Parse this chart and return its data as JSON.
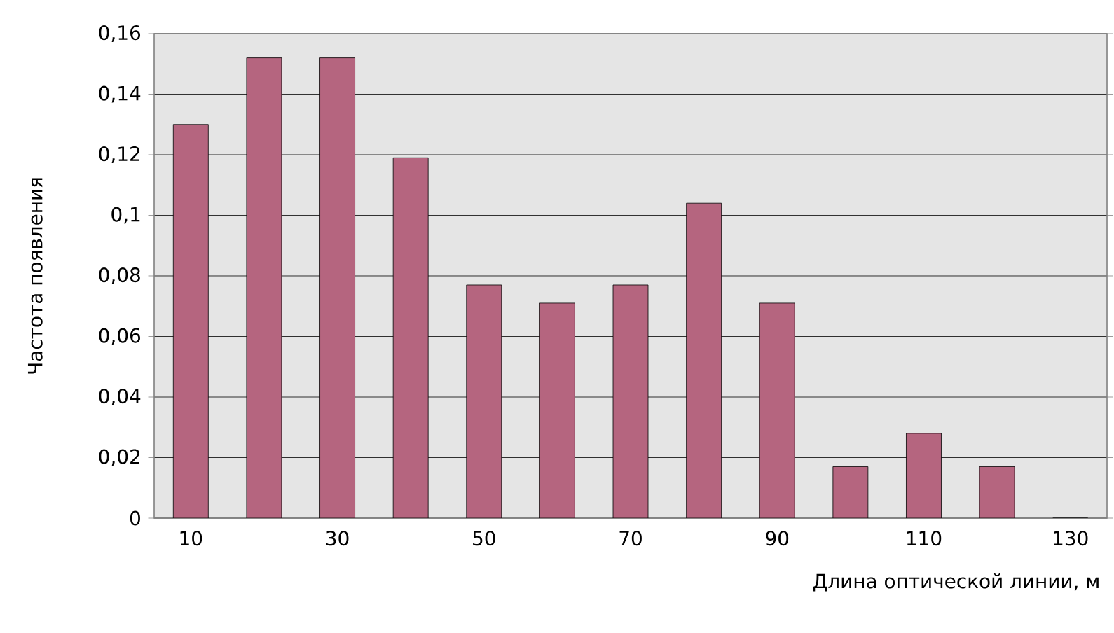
{
  "chart_data": {
    "type": "bar",
    "xlabel": "Длина оптической линии, м",
    "ylabel": "Частота появления",
    "categories": [
      "10",
      null,
      "30",
      null,
      "50",
      null,
      "70",
      null,
      "90",
      null,
      "110",
      null,
      "130"
    ],
    "values": [
      0.13,
      0.152,
      0.152,
      0.119,
      0.077,
      0.071,
      0.077,
      0.104,
      0.071,
      0.017,
      0.028,
      0.017,
      0
    ],
    "color": "#b5657f",
    "ylim": [
      0,
      0.16
    ],
    "yticks": [
      {
        "value": 0,
        "label": "0"
      },
      {
        "value": 0.02,
        "label": "0,02"
      },
      {
        "value": 0.04,
        "label": "0,04"
      },
      {
        "value": 0.06,
        "label": "0,06"
      },
      {
        "value": 0.08,
        "label": "0,08"
      },
      {
        "value": 0.1,
        "label": "0,1"
      },
      {
        "value": 0.12,
        "label": "0,12"
      },
      {
        "value": 0.14,
        "label": "0,14"
      },
      {
        "value": 0.16,
        "label": "0,16"
      }
    ],
    "grid": "y"
  }
}
